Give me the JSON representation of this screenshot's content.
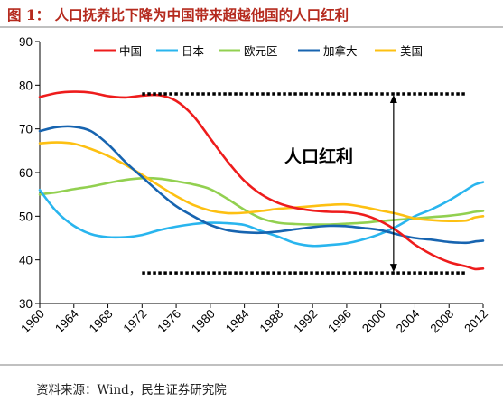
{
  "figure": {
    "title": "图 1：  人口抚养比下降为中国带来超越他国的人口红利",
    "source": "资料来源：Wind，民生证券研究院"
  },
  "chart_data": {
    "type": "line",
    "title": "图 1：  人口抚养比下降为中国带来超越他国的人口红利",
    "xlabel": "",
    "ylabel": "",
    "xlim": [
      1960,
      2012
    ],
    "ylim": [
      30,
      90
    ],
    "grid": false,
    "legend_position": "top",
    "x_ticks": [
      1960,
      1964,
      1968,
      1972,
      1976,
      1980,
      1984,
      1988,
      1992,
      1996,
      2000,
      2004,
      2008,
      2012
    ],
    "y_ticks": [
      30,
      40,
      50,
      60,
      70,
      80,
      90
    ],
    "series": [
      {
        "name": "中国",
        "color": "#ee1c1c",
        "points": [
          [
            1960,
            77.3
          ],
          [
            1962,
            78.2
          ],
          [
            1964,
            78.5
          ],
          [
            1966,
            78.3
          ],
          [
            1968,
            77.5
          ],
          [
            1970,
            77.2
          ],
          [
            1972,
            77.6
          ],
          [
            1974,
            77.7
          ],
          [
            1976,
            76.4
          ],
          [
            1978,
            73.0
          ],
          [
            1980,
            67.8
          ],
          [
            1982,
            62.6
          ],
          [
            1984,
            58.1
          ],
          [
            1986,
            55.0
          ],
          [
            1988,
            53.0
          ],
          [
            1990,
            51.9
          ],
          [
            1992,
            51.3
          ],
          [
            1994,
            51.0
          ],
          [
            1996,
            50.9
          ],
          [
            1998,
            50.3
          ],
          [
            2000,
            48.8
          ],
          [
            2002,
            46.5
          ],
          [
            2004,
            43.5
          ],
          [
            2006,
            41.2
          ],
          [
            2008,
            39.5
          ],
          [
            2010,
            38.5
          ],
          [
            2011,
            37.9
          ],
          [
            2012,
            38.0
          ]
        ]
      },
      {
        "name": "日本",
        "color": "#29b5ee",
        "points": [
          [
            1960,
            56.0
          ],
          [
            1962,
            51.0
          ],
          [
            1964,
            47.8
          ],
          [
            1966,
            45.9
          ],
          [
            1968,
            45.2
          ],
          [
            1970,
            45.2
          ],
          [
            1972,
            45.7
          ],
          [
            1974,
            46.8
          ],
          [
            1976,
            47.6
          ],
          [
            1978,
            48.2
          ],
          [
            1980,
            48.5
          ],
          [
            1982,
            48.4
          ],
          [
            1984,
            48.0
          ],
          [
            1986,
            46.6
          ],
          [
            1988,
            45.3
          ],
          [
            1990,
            43.8
          ],
          [
            1992,
            43.2
          ],
          [
            1994,
            43.4
          ],
          [
            1996,
            43.8
          ],
          [
            1998,
            44.7
          ],
          [
            2000,
            46.0
          ],
          [
            2002,
            47.8
          ],
          [
            2004,
            50.0
          ],
          [
            2006,
            51.6
          ],
          [
            2008,
            53.6
          ],
          [
            2010,
            56.0
          ],
          [
            2011,
            57.2
          ],
          [
            2012,
            57.8
          ]
        ]
      },
      {
        "name": "欧元区",
        "color": "#92d050",
        "points": [
          [
            1960,
            55.0
          ],
          [
            1962,
            55.5
          ],
          [
            1964,
            56.2
          ],
          [
            1966,
            56.8
          ],
          [
            1968,
            57.6
          ],
          [
            1970,
            58.3
          ],
          [
            1972,
            58.7
          ],
          [
            1974,
            58.6
          ],
          [
            1976,
            58.0
          ],
          [
            1978,
            57.3
          ],
          [
            1980,
            56.2
          ],
          [
            1982,
            54.0
          ],
          [
            1984,
            51.5
          ],
          [
            1986,
            49.5
          ],
          [
            1988,
            48.5
          ],
          [
            1990,
            48.2
          ],
          [
            1992,
            48.1
          ],
          [
            1994,
            48.1
          ],
          [
            1996,
            48.3
          ],
          [
            1998,
            48.5
          ],
          [
            2000,
            48.9
          ],
          [
            2002,
            49.2
          ],
          [
            2004,
            49.5
          ],
          [
            2006,
            49.8
          ],
          [
            2008,
            50.1
          ],
          [
            2010,
            50.6
          ],
          [
            2011,
            51.0
          ],
          [
            2012,
            51.2
          ]
        ]
      },
      {
        "name": "加拿大",
        "color": "#1764b0",
        "points": [
          [
            1960,
            69.5
          ],
          [
            1962,
            70.4
          ],
          [
            1964,
            70.5
          ],
          [
            1966,
            69.5
          ],
          [
            1968,
            66.5
          ],
          [
            1970,
            62.5
          ],
          [
            1972,
            59.0
          ],
          [
            1974,
            55.5
          ],
          [
            1976,
            52.3
          ],
          [
            1978,
            50.0
          ],
          [
            1980,
            48.0
          ],
          [
            1982,
            46.8
          ],
          [
            1984,
            46.3
          ],
          [
            1986,
            46.2
          ],
          [
            1988,
            46.5
          ],
          [
            1990,
            47.0
          ],
          [
            1992,
            47.5
          ],
          [
            1994,
            47.8
          ],
          [
            1996,
            47.7
          ],
          [
            1998,
            47.3
          ],
          [
            2000,
            46.8
          ],
          [
            2002,
            45.8
          ],
          [
            2004,
            45.0
          ],
          [
            2006,
            44.6
          ],
          [
            2008,
            44.1
          ],
          [
            2010,
            43.9
          ],
          [
            2011,
            44.2
          ],
          [
            2012,
            44.4
          ]
        ]
      },
      {
        "name": "美国",
        "color": "#fdc012",
        "points": [
          [
            1960,
            66.7
          ],
          [
            1962,
            66.9
          ],
          [
            1964,
            66.6
          ],
          [
            1966,
            65.4
          ],
          [
            1968,
            63.8
          ],
          [
            1970,
            61.8
          ],
          [
            1972,
            59.5
          ],
          [
            1974,
            57.0
          ],
          [
            1976,
            54.6
          ],
          [
            1978,
            52.6
          ],
          [
            1980,
            51.3
          ],
          [
            1982,
            50.7
          ],
          [
            1984,
            50.8
          ],
          [
            1986,
            51.2
          ],
          [
            1988,
            51.7
          ],
          [
            1990,
            52.0
          ],
          [
            1992,
            52.3
          ],
          [
            1994,
            52.6
          ],
          [
            1996,
            52.7
          ],
          [
            1998,
            52.1
          ],
          [
            2000,
            51.3
          ],
          [
            2002,
            50.5
          ],
          [
            2004,
            49.5
          ],
          [
            2006,
            49.1
          ],
          [
            2008,
            48.9
          ],
          [
            2010,
            49.0
          ],
          [
            2011,
            49.7
          ],
          [
            2012,
            50.0
          ]
        ]
      }
    ],
    "annotation": {
      "text": "人口红利",
      "upper": 78.0,
      "lower": 37.0,
      "arrow_x": 2001.5,
      "dotted_from_x": 1972,
      "dotted_to_x": 2010
    }
  }
}
